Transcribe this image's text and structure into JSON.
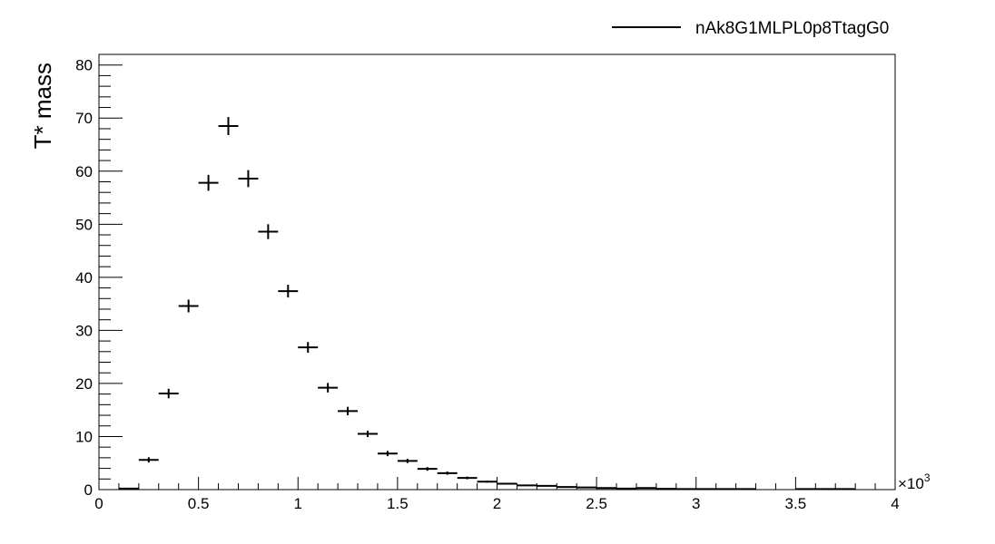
{
  "chart_data": {
    "type": "scatter",
    "title": "",
    "xlabel": "",
    "ylabel": "T* mass",
    "x_multiplier": "×10",
    "x_multiplier_exp": "3",
    "xlim": [
      0,
      4
    ],
    "ylim": [
      0,
      82
    ],
    "grid": false,
    "legend_position": "top-right",
    "x_ticks": [
      0,
      0.5,
      1,
      1.5,
      2,
      2.5,
      3,
      3.5,
      4
    ],
    "x_tick_labels": [
      "0",
      "0.5",
      "1",
      "1.5",
      "2",
      "2.5",
      "3",
      "3.5",
      "4"
    ],
    "y_ticks": [
      0,
      10,
      20,
      30,
      40,
      50,
      60,
      70,
      80
    ],
    "y_tick_labels": [
      "0",
      "10",
      "20",
      "30",
      "40",
      "50",
      "60",
      "70",
      "80"
    ],
    "series": [
      {
        "name": "nAk8G1MLPL0p8TtagG0",
        "color": "#000000",
        "bin_width": 0.1,
        "x": [
          0.15,
          0.25,
          0.35,
          0.45,
          0.55,
          0.65,
          0.75,
          0.85,
          0.95,
          1.05,
          1.15,
          1.25,
          1.35,
          1.45,
          1.55,
          1.65,
          1.75,
          1.85,
          1.95,
          2.05,
          2.15,
          2.25,
          2.35,
          2.45,
          2.55,
          2.65,
          2.75,
          2.85,
          2.95,
          3.05,
          3.15,
          3.25,
          3.55,
          3.65,
          3.75
        ],
        "y": [
          0.2,
          5.6,
          18.1,
          34.6,
          57.8,
          68.5,
          58.6,
          48.6,
          37.4,
          26.8,
          19.2,
          14.8,
          10.5,
          6.8,
          5.4,
          3.9,
          3.1,
          2.2,
          1.5,
          1.1,
          0.8,
          0.7,
          0.5,
          0.4,
          0.3,
          0.2,
          0.3,
          0.15,
          0.1,
          0.1,
          0.1,
          0.1,
          0.1,
          0.1,
          0.1
        ],
        "y_err": [
          0.15,
          0.5,
          0.9,
          1.2,
          1.5,
          1.7,
          1.6,
          1.4,
          1.2,
          1.0,
          0.9,
          0.8,
          0.6,
          0.5,
          0.4,
          0.35,
          0.3,
          0.25,
          0.2,
          0.15,
          0.12,
          0.1,
          0.1,
          0.08,
          0.08,
          0.06,
          0.06,
          0.05,
          0.05,
          0.05,
          0.05,
          0.05,
          0.05,
          0.05,
          0.05
        ]
      }
    ]
  }
}
